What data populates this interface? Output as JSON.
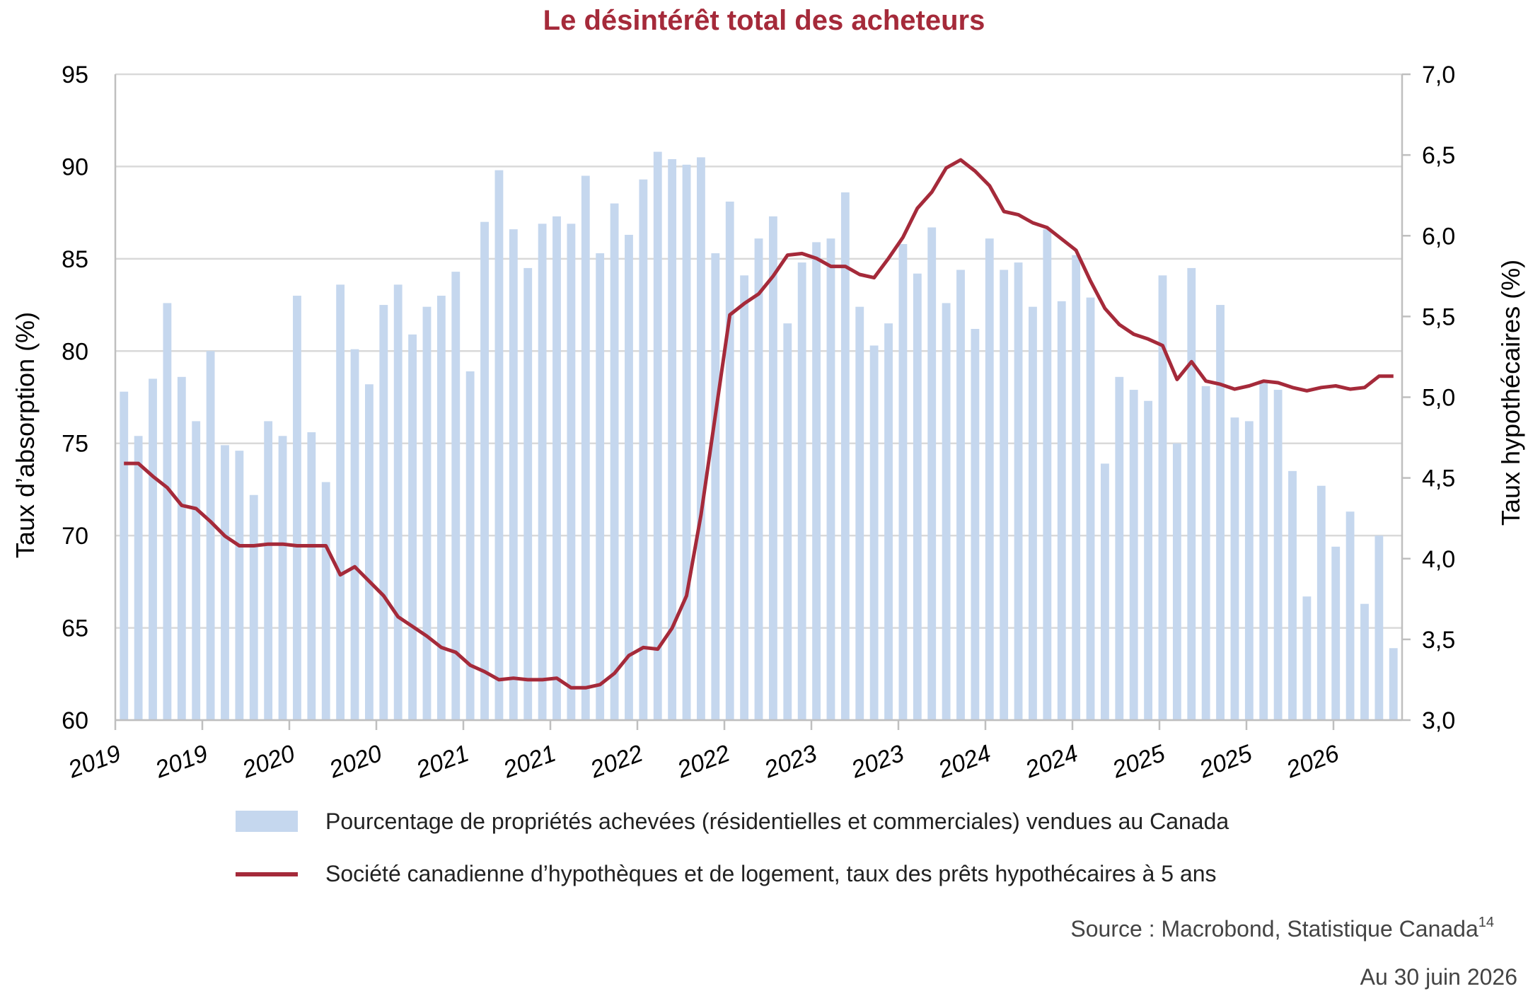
{
  "chart_data": {
    "type": "bar+line",
    "title": "Le désintérêt total des acheteurs",
    "title_color": "#a52a3a",
    "y_left": {
      "label": "Taux d’absorption (%)",
      "lim": [
        60,
        95
      ],
      "ticks": [
        "60",
        "65",
        "70",
        "75",
        "80",
        "85",
        "90",
        "95"
      ]
    },
    "y_right": {
      "label": "Taux hypothécaires (%)",
      "lim": [
        3.0,
        7.0
      ],
      "ticks": [
        "3,0",
        "3,5",
        "4,0",
        "4,5",
        "5,0",
        "5,5",
        "6,0",
        "6,5",
        "7,0"
      ]
    },
    "x_tick_labels": [
      "2019",
      "2019",
      "2020",
      "2020",
      "2021",
      "2021",
      "2022",
      "2022",
      "2023",
      "2023",
      "2024",
      "2024",
      "2025",
      "2025",
      "2026"
    ],
    "grid": true,
    "bar_color": "#c5d7ee",
    "line_color": "#a52a3a",
    "series": [
      {
        "name": "Pourcentage de propriétés achevées (résidentielles et commerciales) vendues au Canada",
        "type": "bar",
        "axis": "left",
        "values": [
          77.8,
          75.4,
          78.5,
          82.6,
          78.6,
          76.2,
          80.0,
          74.9,
          74.6,
          72.2,
          76.2,
          75.4,
          83.0,
          75.6,
          72.9,
          83.6,
          80.1,
          78.2,
          82.5,
          83.6,
          80.9,
          82.4,
          83.0,
          84.3,
          78.9,
          87.0,
          89.8,
          86.6,
          84.5,
          86.9,
          87.3,
          86.9,
          89.5,
          85.3,
          88.0,
          86.3,
          89.3,
          90.8,
          90.4,
          90.1,
          90.5,
          85.3,
          88.1,
          84.1,
          86.1,
          87.3,
          81.5,
          84.8,
          85.9,
          86.1,
          88.6,
          82.4,
          80.3,
          81.5,
          85.8,
          84.2,
          86.7,
          82.6,
          84.4,
          81.2,
          86.1,
          84.4,
          84.8,
          82.4,
          86.6,
          82.7,
          85.2,
          82.9,
          73.9,
          78.6,
          77.9,
          77.3,
          84.1,
          75.0,
          84.5,
          78.1,
          82.5,
          76.4,
          76.2,
          78.4,
          77.9,
          73.5,
          66.7,
          72.7,
          69.4,
          71.3,
          66.3,
          70.0,
          63.9
        ]
      },
      {
        "name": "Société canadienne d’hypothèques et de logement, taux des prêts hypothécaires à 5 ans",
        "type": "line",
        "axis": "right",
        "values": [
          4.59,
          4.59,
          4.51,
          4.44,
          4.33,
          4.31,
          4.23,
          4.14,
          4.08,
          4.08,
          4.09,
          4.09,
          4.08,
          4.08,
          4.08,
          3.9,
          3.95,
          3.86,
          3.77,
          3.64,
          3.58,
          3.52,
          3.45,
          3.42,
          3.34,
          3.3,
          3.25,
          3.26,
          3.25,
          3.25,
          3.26,
          3.2,
          3.2,
          3.22,
          3.29,
          3.4,
          3.45,
          3.44,
          3.57,
          3.77,
          4.27,
          4.89,
          5.51,
          5.58,
          5.64,
          5.75,
          5.88,
          5.89,
          5.86,
          5.81,
          5.81,
          5.76,
          5.74,
          5.86,
          5.99,
          6.17,
          6.27,
          6.42,
          6.47,
          6.4,
          6.31,
          6.15,
          6.13,
          6.08,
          6.05,
          5.98,
          5.91,
          5.72,
          5.55,
          5.45,
          5.39,
          5.36,
          5.32,
          5.11,
          5.22,
          5.1,
          5.08,
          5.05,
          5.07,
          5.1,
          5.09,
          5.06,
          5.04,
          5.06,
          5.07,
          5.05,
          5.06,
          5.13,
          5.13
        ]
      }
    ]
  },
  "footer": {
    "source": "Source : Macrobond, Statistique Canada",
    "source_sup": "14",
    "date": "Au 30 juin 2026"
  }
}
